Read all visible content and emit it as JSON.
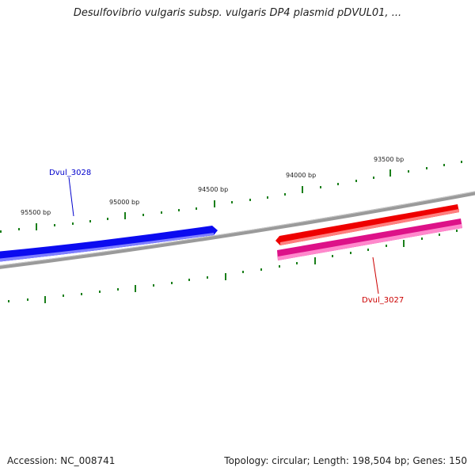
{
  "title": "Desulfovibrio vulgaris subsp. vulgaris DP4 plasmid pDVUL01, ...",
  "footer": {
    "accession": "Accession: NC_008741",
    "summary": "Topology: circular; Length: 198,504 bp; Genes: 150"
  },
  "ticks": [
    {
      "label": "95500 bp"
    },
    {
      "label": "95000 bp"
    },
    {
      "label": "94500 bp"
    },
    {
      "label": "94000 bp"
    },
    {
      "label": "93500 bp"
    }
  ],
  "genes": [
    {
      "label": "Dvul_3028",
      "color": "#0000cc",
      "fill": "#1a1aff",
      "strand": "forward"
    },
    {
      "label": "Dvul_3027",
      "color": "#cc0000",
      "fill": "#ee0000",
      "strand": "reverse"
    },
    {
      "label": "",
      "color": "#cc0077",
      "fill": "#ee1a99",
      "strand": "reverse"
    }
  ],
  "colors": {
    "backbone": "#888888",
    "ticks": "#1a7f1a"
  }
}
